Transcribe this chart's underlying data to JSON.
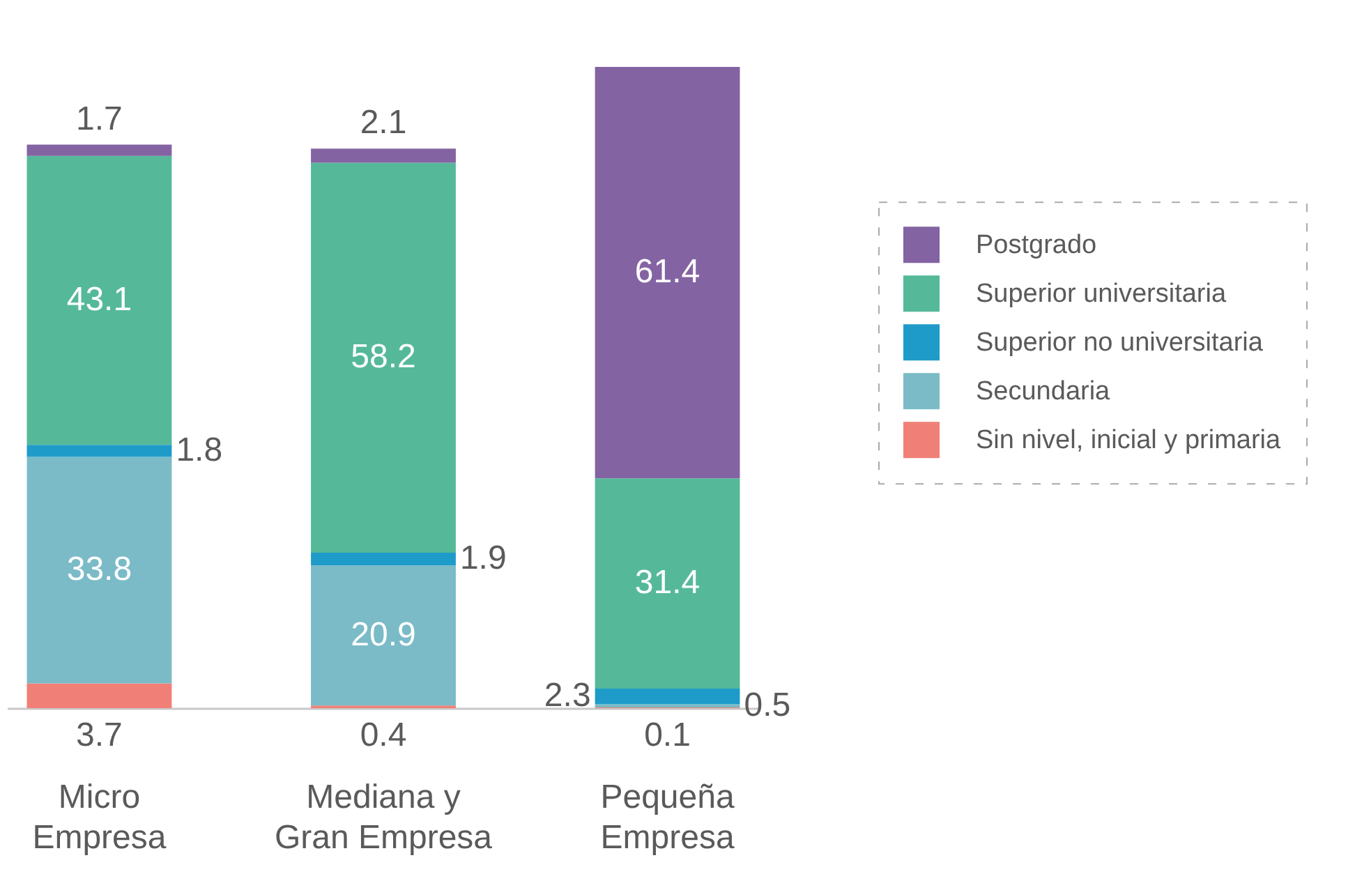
{
  "chart_data": {
    "type": "bar",
    "stacked": true,
    "data_labels": true,
    "legend": "right",
    "tick_labels": "x",
    "categories": [
      "Micro Empresa",
      "Mediana y Gran Empresa",
      "Pequeña Empresa"
    ],
    "series": [
      {
        "name": "Sin nivel, inicial y primaria",
        "color": "#f08077",
        "values": [
          3.7,
          0.4,
          0.1
        ]
      },
      {
        "name": "Secundaria",
        "color": "#7abbc7",
        "values": [
          33.8,
          20.9,
          0.5
        ]
      },
      {
        "name": "Superior no universitaria",
        "color": "#1f9bca",
        "values": [
          1.8,
          1.9,
          2.3
        ]
      },
      {
        "name": "Superior universitaria",
        "color": "#55b999",
        "values": [
          43.1,
          58.2,
          31.4
        ]
      },
      {
        "name": "Postgrado",
        "color": "#8463a3",
        "values": [
          1.7,
          2.1,
          61.4
        ]
      }
    ]
  }
}
